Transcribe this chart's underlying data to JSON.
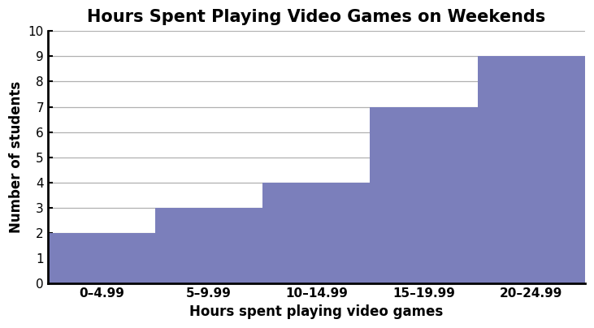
{
  "title": "Hours Spent Playing Video Games on Weekends",
  "xlabel": "Hours spent playing video games",
  "ylabel": "Number of students",
  "bar_edges": [
    0,
    5,
    10,
    15,
    20,
    25
  ],
  "bar_heights": [
    2,
    3,
    4,
    7,
    9
  ],
  "bar_color": "#7b7fbb",
  "bar_edgecolor": "#7b7fbb",
  "ylim": [
    0,
    10
  ],
  "yticks": [
    0,
    1,
    2,
    3,
    4,
    5,
    6,
    7,
    8,
    9,
    10
  ],
  "xtick_labels": [
    "0–4.99",
    "5–9.99",
    "10–14.99",
    "15–19.99",
    "20–24.99"
  ],
  "title_fontsize": 15,
  "label_fontsize": 12,
  "tick_fontsize": 11,
  "title_fontweight": "bold",
  "label_fontweight": "bold",
  "grid_color": "#b0b0b0",
  "background_color": "#ffffff",
  "spine_color": "#000000",
  "spine_linewidth": 2.0
}
